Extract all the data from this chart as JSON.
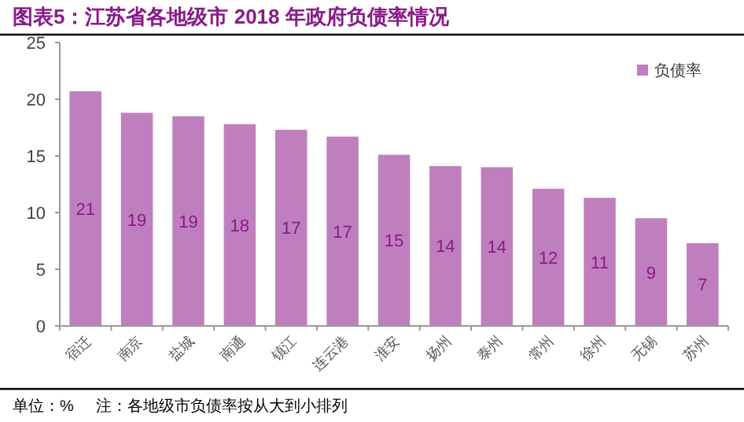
{
  "chart_data": {
    "type": "bar",
    "title": "图表5：江苏省各地级市 2018 年政府负债率情况",
    "categories": [
      "宿迁",
      "南京",
      "盐城",
      "南通",
      "镇江",
      "连云港",
      "淮安",
      "扬州",
      "泰州",
      "常州",
      "徐州",
      "无锡",
      "苏州"
    ],
    "series": [
      {
        "name": "负债率",
        "color": "#bf7fbf",
        "values": [
          20.7,
          18.8,
          18.5,
          17.8,
          17.3,
          16.7,
          15.1,
          14.1,
          14.0,
          12.1,
          11.3,
          9.5,
          7.3
        ],
        "value_labels": [
          "21",
          "19",
          "19",
          "18",
          "17",
          "17",
          "15",
          "14",
          "14",
          "12",
          "11",
          "9",
          "7"
        ]
      }
    ],
    "ylim": [
      0,
      25
    ],
    "yticks": [
      0,
      5,
      10,
      15,
      20,
      25
    ],
    "grid": false,
    "legend": "top right",
    "annotations": [
      "单位：%",
      "注：各地级市负债率按从大到小排列"
    ]
  }
}
